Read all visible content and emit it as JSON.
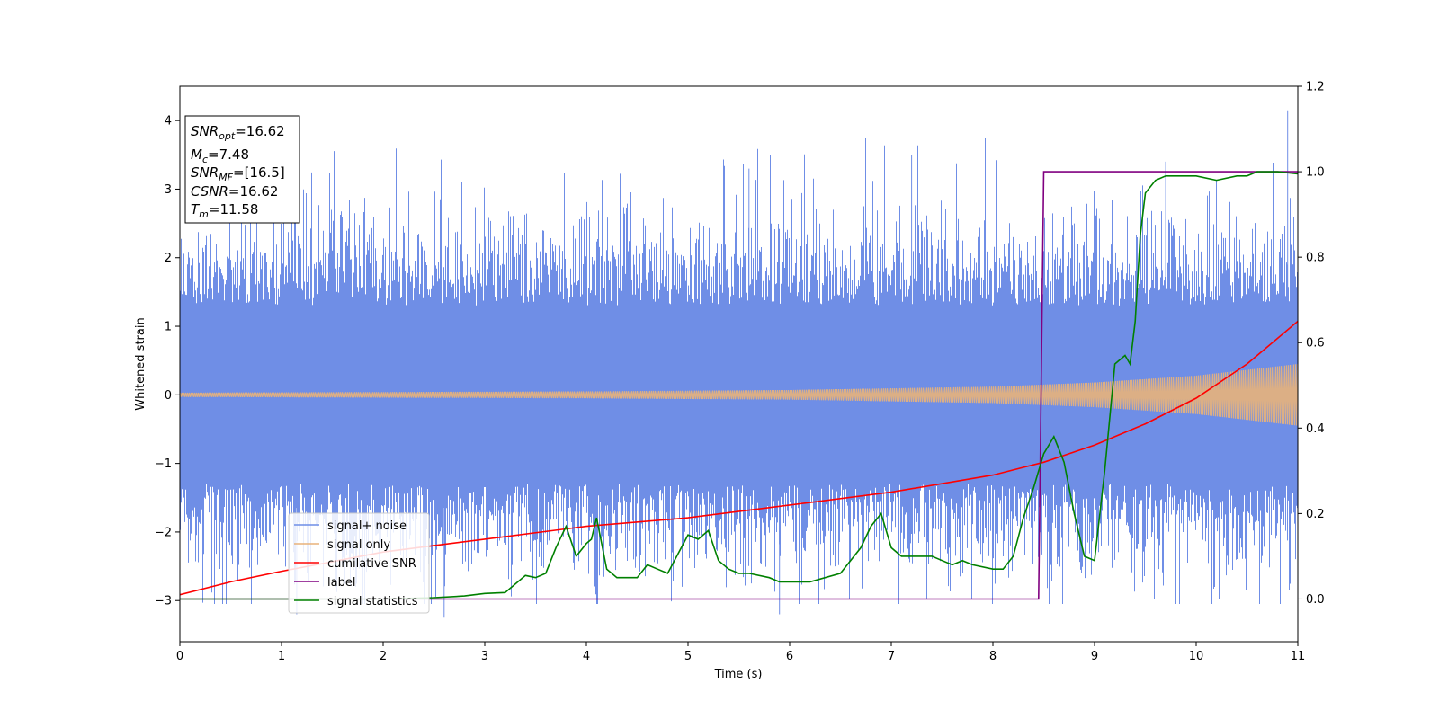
{
  "chart_data": {
    "type": "line",
    "xlabel": "Time (s)",
    "ylabel": "Whitened strain",
    "xlim": [
      0,
      11
    ],
    "ylim_left": [
      -3.6,
      4.5
    ],
    "ylim_right": [
      -0.1,
      1.2
    ],
    "xticks": [
      0,
      1,
      2,
      3,
      4,
      5,
      6,
      7,
      8,
      9,
      10,
      11
    ],
    "yticks_left": [
      -3,
      -2,
      -1,
      0,
      1,
      2,
      3,
      4
    ],
    "yticks_right": [
      "0.0",
      "0.2",
      "0.4",
      "0.6",
      "0.8",
      "1.0",
      "1.2"
    ],
    "grid": false,
    "legend_position": "lower-left",
    "info_box": {
      "snr_opt": "=16.62",
      "mc": "=7.48",
      "snr_mf": "=[16.5]",
      "csnr": "=16.62",
      "tm": "=11.58"
    },
    "colors": {
      "signal_noise": "#6f8ee6",
      "signal_only": "#e8b27a",
      "cumulative": "#ff0000",
      "label": "#800080",
      "statistics": "#008000"
    },
    "series": [
      {
        "name": "signal+ noise",
        "axis": "left",
        "description_values": "dense noise, amplitude approx +/-2.3 with spikes up to 4.15",
        "max_peak": 4.15,
        "min_peak": -3.25
      },
      {
        "name": "signal only",
        "axis": "left",
        "envelope_x": [
          0,
          2,
          4,
          6,
          8,
          9,
          10,
          11
        ],
        "envelope_y": [
          0.03,
          0.04,
          0.05,
          0.07,
          0.12,
          0.18,
          0.28,
          0.45
        ]
      },
      {
        "name": "cumilative SNR",
        "axis": "right",
        "x": [
          0,
          0.5,
          1,
          2,
          3,
          4,
          5,
          6,
          7,
          8,
          8.5,
          9,
          9.5,
          10,
          10.5,
          11
        ],
        "y": [
          0.01,
          0.04,
          0.065,
          0.11,
          0.14,
          0.17,
          0.19,
          0.22,
          0.25,
          0.29,
          0.32,
          0.36,
          0.41,
          0.47,
          0.55,
          0.65
        ]
      },
      {
        "name": "label",
        "axis": "right",
        "x": [
          0,
          8.45,
          8.5,
          11
        ],
        "y": [
          0.0,
          0.0,
          1.0,
          1.0
        ]
      },
      {
        "name": "signal statistics",
        "axis": "right",
        "x": [
          0,
          1,
          2,
          2.5,
          2.8,
          3.0,
          3.2,
          3.4,
          3.5,
          3.6,
          3.7,
          3.8,
          3.9,
          4.0,
          4.05,
          4.1,
          4.2,
          4.3,
          4.4,
          4.5,
          4.6,
          4.7,
          4.8,
          5.0,
          5.1,
          5.2,
          5.3,
          5.4,
          5.5,
          5.6,
          5.8,
          5.9,
          6.0,
          6.2,
          6.5,
          6.7,
          6.8,
          6.9,
          7.0,
          7.1,
          7.2,
          7.4,
          7.5,
          7.6,
          7.7,
          7.8,
          8.0,
          8.1,
          8.2,
          8.3,
          8.4,
          8.5,
          8.6,
          8.7,
          8.8,
          8.9,
          9.0,
          9.1,
          9.2,
          9.3,
          9.35,
          9.4,
          9.45,
          9.5,
          9.6,
          9.7,
          9.8,
          9.9,
          10.0,
          10.2,
          10.4,
          10.5,
          10.6,
          10.8,
          11.0
        ],
        "y": [
          0.0,
          0.0,
          0.0,
          0.003,
          0.007,
          0.013,
          0.015,
          0.055,
          0.05,
          0.06,
          0.12,
          0.17,
          0.1,
          0.13,
          0.14,
          0.19,
          0.07,
          0.05,
          0.05,
          0.05,
          0.08,
          0.07,
          0.06,
          0.15,
          0.14,
          0.16,
          0.09,
          0.07,
          0.06,
          0.06,
          0.05,
          0.04,
          0.04,
          0.04,
          0.06,
          0.12,
          0.17,
          0.2,
          0.12,
          0.1,
          0.1,
          0.1,
          0.09,
          0.08,
          0.09,
          0.08,
          0.07,
          0.07,
          0.1,
          0.19,
          0.26,
          0.34,
          0.38,
          0.32,
          0.2,
          0.1,
          0.09,
          0.3,
          0.55,
          0.57,
          0.55,
          0.65,
          0.85,
          0.95,
          0.98,
          0.99,
          0.99,
          0.99,
          0.99,
          0.98,
          0.99,
          0.99,
          1.0,
          1.0,
          0.995
        ]
      }
    ]
  }
}
